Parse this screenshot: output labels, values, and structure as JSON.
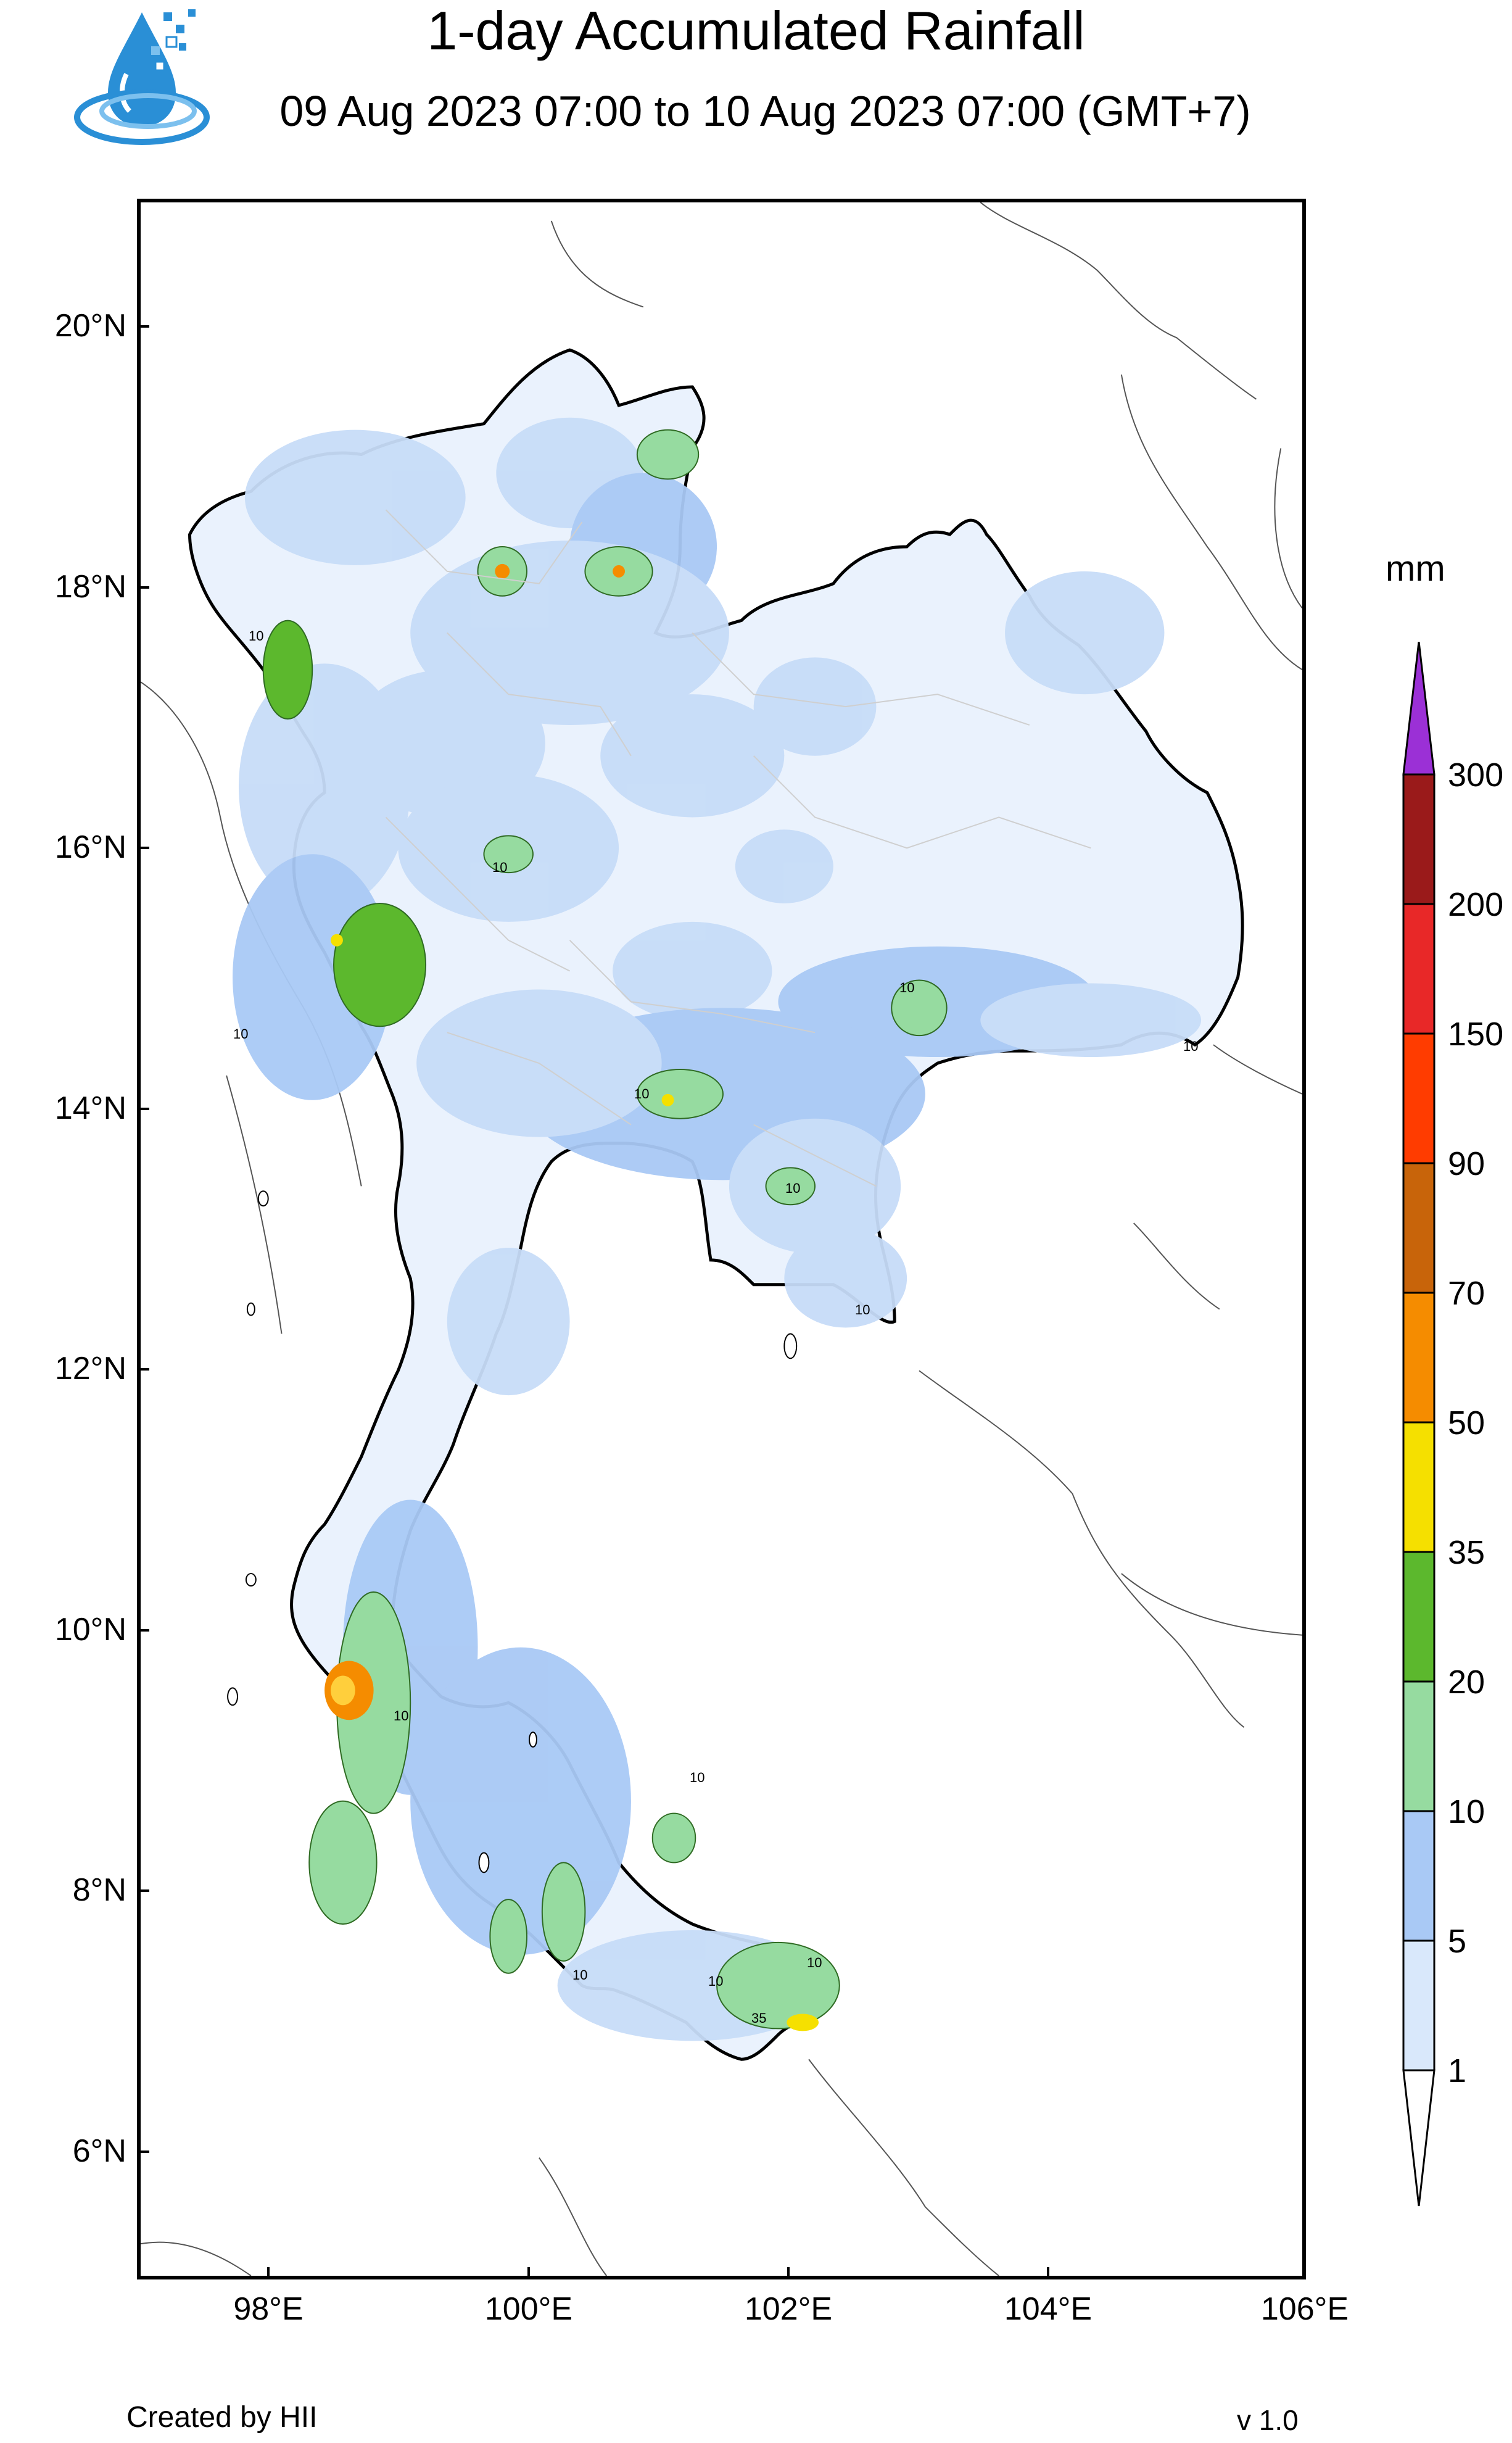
{
  "header": {
    "title": "1-day Accumulated Rainfall",
    "subtitle": "09 Aug 2023 07:00 to 10 Aug 2023 07:00 (GMT+7)"
  },
  "map": {
    "lat_ticks": [
      "20°N",
      "18°N",
      "16°N",
      "14°N",
      "12°N",
      "10°N",
      "8°N",
      "6°N"
    ],
    "lon_ticks": [
      "98°E",
      "100°E",
      "102°E",
      "104°E",
      "106°E"
    ],
    "contour_labels": [
      "10",
      "10",
      "10",
      "10",
      "10",
      "10",
      "10",
      "10",
      "10",
      "10",
      "10",
      "10",
      "10",
      "35"
    ]
  },
  "legend": {
    "unit": "mm",
    "labels": [
      "1",
      "5",
      "10",
      "20",
      "35",
      "50",
      "70",
      "90",
      "150",
      "200",
      "300"
    ],
    "colors": [
      "#d9e8fb",
      "#a9c9f5",
      "#96dba0",
      "#5cb82d",
      "#f5e000",
      "#f58c00",
      "#c8640a",
      "#ff3c00",
      "#e82828",
      "#9a1a1a",
      "#9b30d6"
    ]
  },
  "footer": {
    "credit": "Created by HII",
    "version": "v 1.0"
  }
}
